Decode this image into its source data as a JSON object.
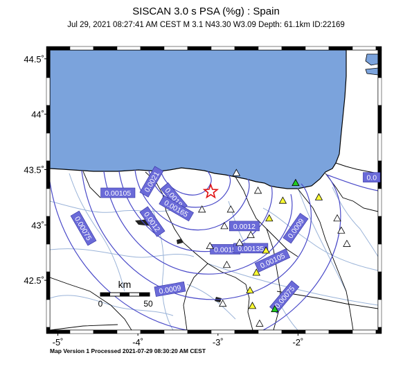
{
  "title": "SISCAN 3.0 s PSA (%g) : Spain",
  "subtitle": "Jul 29, 2021 08:27:41 AM CEST   M 3.1   N43.30 W3.09   Depth: 61.1km   ID:22169",
  "footer": "Map Version 1 Processed 2021-07-29 08:30:20 AM CEST",
  "lat_ticks": [
    {
      "label": "44.5˚",
      "value": 44.5
    },
    {
      "label": "44˚",
      "value": 44.0
    },
    {
      "label": "43.5˚",
      "value": 43.5
    },
    {
      "label": "43˚",
      "value": 43.0
    },
    {
      "label": "42.5˚",
      "value": 42.5
    }
  ],
  "lon_ticks": [
    {
      "label": "-5˚",
      "value": -5
    },
    {
      "label": "-4˚",
      "value": -4
    },
    {
      "label": "-3˚",
      "value": -3
    },
    {
      "label": "-2˚",
      "value": -2
    }
  ],
  "contour_labels": [
    {
      "text": "0.00105",
      "lon": -4.25,
      "lat": 43.29
    },
    {
      "text": "0.0018",
      "lon": -3.55,
      "lat": 43.25
    },
    {
      "text": "0.0021",
      "lon": -3.83,
      "lat": 43.39
    },
    {
      "text": "0.00165",
      "lon": -3.52,
      "lat": 43.15
    },
    {
      "text": "0.0012",
      "lon": -3.82,
      "lat": 43.03
    },
    {
      "text": "0.00075",
      "lon": -4.68,
      "lat": 42.97
    },
    {
      "text": "0.0012",
      "lon": -2.67,
      "lat": 42.99
    },
    {
      "text": "0.0009",
      "lon": -2.03,
      "lat": 42.97
    },
    {
      "text": "0.0015",
      "lon": -2.91,
      "lat": 42.78
    },
    {
      "text": "0.00135",
      "lon": -2.59,
      "lat": 42.79
    },
    {
      "text": "0.00105",
      "lon": -2.32,
      "lat": 42.68
    },
    {
      "text": "0.0009",
      "lon": -3.6,
      "lat": 42.42
    },
    {
      "text": "0.00075",
      "lon": -2.17,
      "lat": 42.35
    },
    {
      "text": "0.0",
      "lon": -1.08,
      "lat": 43.43
    }
  ],
  "epicenter": {
    "lon": -3.09,
    "lat": 43.3
  },
  "stations": [
    {
      "lon": -2.77,
      "lat": 43.47,
      "color": "#ffffff"
    },
    {
      "lon": -2.5,
      "lat": 43.31,
      "color": "#ffffff"
    },
    {
      "lon": -2.03,
      "lat": 43.38,
      "color": "#22cc22"
    },
    {
      "lon": -1.74,
      "lat": 43.25,
      "color": "#ffff33"
    },
    {
      "lon": -2.19,
      "lat": 43.22,
      "color": "#ffff33"
    },
    {
      "lon": -3.2,
      "lat": 43.14,
      "color": "#ffffff"
    },
    {
      "lon": -2.84,
      "lat": 43.14,
      "color": "#ffffff"
    },
    {
      "lon": -2.92,
      "lat": 42.99,
      "color": "#ffffff"
    },
    {
      "lon": -2.36,
      "lat": 43.06,
      "color": "#ffff33"
    },
    {
      "lon": -3.1,
      "lat": 42.81,
      "color": "#ffffff"
    },
    {
      "lon": -2.73,
      "lat": 42.84,
      "color": "#ffffff"
    },
    {
      "lon": -2.59,
      "lat": 42.91,
      "color": "#ffffff"
    },
    {
      "lon": -2.4,
      "lat": 42.77,
      "color": "#ffff33"
    },
    {
      "lon": -2.89,
      "lat": 42.64,
      "color": "#ffffff"
    },
    {
      "lon": -2.52,
      "lat": 42.57,
      "color": "#ffff33"
    },
    {
      "lon": -2.6,
      "lat": 42.41,
      "color": "#ffff33"
    },
    {
      "lon": -2.94,
      "lat": 42.29,
      "color": "#ffffff"
    },
    {
      "lon": -2.57,
      "lat": 42.27,
      "color": "#ffff33"
    },
    {
      "lon": -2.29,
      "lat": 42.24,
      "color": "#22cc22"
    },
    {
      "lon": -1.46,
      "lat": 42.95,
      "color": "#ffffff"
    },
    {
      "lon": -1.39,
      "lat": 42.83,
      "color": "#ffffff"
    },
    {
      "lon": -1.51,
      "lat": 43.06,
      "color": "#ffffff"
    },
    {
      "lon": -2.48,
      "lat": 42.11,
      "color": "#ffffff"
    }
  ],
  "scale_bar": {
    "unit": "km",
    "labels": [
      "0",
      "50"
    ],
    "max_km": 50
  },
  "colors": {
    "sea": "#7ba3dc",
    "land": "#ffffff",
    "contour": "#4848c8",
    "label_bg": "#6a6ad8",
    "label_text": "#ffffff",
    "rivers": "#9ab3d8",
    "borders": "#000000"
  }
}
